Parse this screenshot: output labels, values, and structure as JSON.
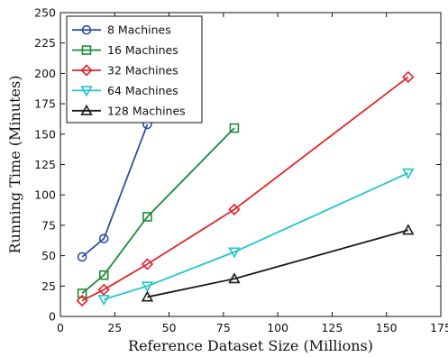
{
  "chart_data": {
    "type": "line",
    "title": "",
    "xlabel": "Reference Dataset Size (Millions)",
    "ylabel": "Running Time (Minutes)",
    "xlim": [
      0,
      175
    ],
    "ylim": [
      0,
      250
    ],
    "xticks": [
      0,
      25,
      50,
      75,
      100,
      125,
      150,
      175
    ],
    "yticks": [
      0,
      25,
      50,
      75,
      100,
      125,
      150,
      175,
      200,
      225,
      250
    ],
    "grid": false,
    "legend_position": "top-left",
    "series": [
      {
        "name": "8 Machines",
        "color": "#3050a0",
        "marker": "circle",
        "points": [
          [
            10,
            49
          ],
          [
            20,
            64
          ],
          [
            40,
            158
          ]
        ]
      },
      {
        "name": "16 Machines",
        "color": "#1f8a3c",
        "marker": "square",
        "points": [
          [
            10,
            19
          ],
          [
            20,
            34
          ],
          [
            40,
            82
          ],
          [
            80,
            155
          ]
        ]
      },
      {
        "name": "32 Machines",
        "color": "#e0242c",
        "marker": "diamond",
        "points": [
          [
            10,
            13
          ],
          [
            20,
            22
          ],
          [
            40,
            43
          ],
          [
            80,
            88
          ],
          [
            160,
            197
          ]
        ]
      },
      {
        "name": "64 Machines",
        "color": "#20c6c9",
        "marker": "triangle-down",
        "points": [
          [
            20,
            14
          ],
          [
            40,
            25
          ],
          [
            80,
            53
          ],
          [
            160,
            118
          ]
        ]
      },
      {
        "name": "128 Machines",
        "color": "#1a1a1a",
        "marker": "triangle-up",
        "points": [
          [
            40,
            16
          ],
          [
            80,
            31
          ],
          [
            160,
            71
          ]
        ]
      }
    ]
  }
}
